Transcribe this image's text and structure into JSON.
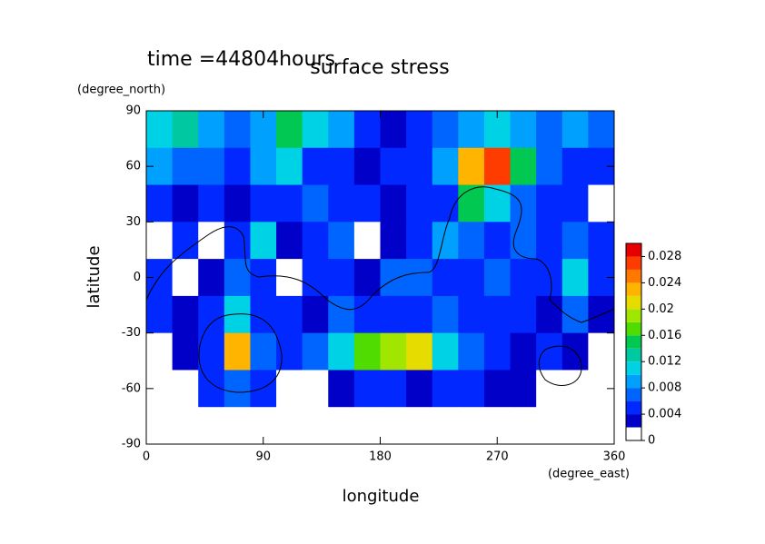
{
  "chart_data": {
    "type": "contour",
    "title": "surface stress",
    "subtitle": "time =44804hours",
    "x_label": "longitude",
    "x_unit": "(degree_east)",
    "y_label": "latitude",
    "y_unit": "(degree_north)",
    "x": [
      10,
      30,
      50,
      70,
      90,
      110,
      130,
      150,
      170,
      190,
      210,
      230,
      250,
      270,
      290,
      310,
      330,
      350
    ],
    "y": [
      80,
      60,
      40,
      20,
      0,
      -20,
      -40,
      -60,
      -80
    ],
    "z": [
      [
        0.01,
        0.012,
        0.008,
        0.006,
        0.008,
        0.014,
        0.01,
        0.008,
        0.004,
        0.003,
        0.004,
        0.006,
        0.008,
        0.01,
        0.008,
        0.006,
        0.008,
        0.006
      ],
      [
        0.008,
        0.006,
        0.006,
        0.004,
        0.008,
        0.01,
        0.004,
        0.004,
        0.003,
        0.004,
        0.004,
        0.008,
        0.022,
        0.026,
        0.014,
        0.006,
        0.004,
        0.004
      ],
      [
        0.004,
        0.003,
        0.004,
        0.003,
        0.004,
        0.004,
        0.006,
        0.004,
        0.004,
        0.003,
        0.004,
        0.004,
        0.014,
        0.01,
        0.006,
        0.004,
        0.004,
        0.001
      ],
      [
        0.001,
        0.004,
        0.001,
        0.004,
        0.01,
        0.003,
        0.004,
        0.006,
        0.001,
        0.003,
        0.004,
        0.008,
        0.006,
        0.004,
        0.006,
        0.004,
        0.006,
        0.004
      ],
      [
        0.004,
        0.001,
        0.003,
        0.006,
        0.004,
        0.001,
        0.004,
        0.004,
        0.003,
        0.006,
        0.006,
        0.004,
        0.004,
        0.006,
        0.004,
        0.004,
        0.01,
        0.004
      ],
      [
        0.004,
        0.003,
        0.004,
        0.01,
        0.004,
        0.004,
        0.003,
        0.006,
        0.004,
        0.004,
        0.004,
        0.006,
        0.004,
        0.004,
        0.004,
        0.003,
        0.006,
        0.003
      ],
      [
        0.001,
        0.003,
        0.004,
        0.022,
        0.006,
        0.004,
        0.006,
        0.01,
        0.016,
        0.018,
        0.02,
        0.01,
        0.006,
        0.004,
        0.003,
        0.004,
        0.003,
        0.001
      ],
      [
        0.001,
        0.001,
        0.004,
        0.006,
        0.004,
        0.001,
        0.001,
        0.003,
        0.004,
        0.004,
        0.003,
        0.004,
        0.004,
        0.003,
        0.003,
        0.001,
        0.001,
        0.001
      ],
      [
        0,
        0,
        0,
        0,
        0,
        0,
        0,
        0,
        0,
        0,
        0,
        0,
        0,
        0,
        0,
        0,
        0,
        0
      ]
    ],
    "xlim": [
      0,
      360
    ],
    "xticks": [
      0,
      90,
      180,
      270,
      360
    ],
    "ylim": [
      -90,
      90
    ],
    "yticks": [
      -90,
      -60,
      -30,
      0,
      30,
      60,
      90
    ],
    "levels": [
      0,
      0.002,
      0.004,
      0.006,
      0.008,
      0.01,
      0.012,
      0.014,
      0.016,
      0.018,
      0.02,
      0.022,
      0.024,
      0.026,
      0.028,
      0.03
    ],
    "colors": [
      "#ffffff",
      "#0000c8",
      "#0028ff",
      "#0064ff",
      "#00a0ff",
      "#00d2e6",
      "#00c8a0",
      "#00c850",
      "#50dc00",
      "#a0e600",
      "#e6dc00",
      "#ffb400",
      "#ff7800",
      "#ff3c00",
      "#e60000"
    ],
    "clim": [
      0,
      0.03
    ],
    "cticks": [
      0,
      0.004,
      0.008,
      0.012,
      0.016,
      0.02,
      0.024,
      0.028
    ]
  }
}
